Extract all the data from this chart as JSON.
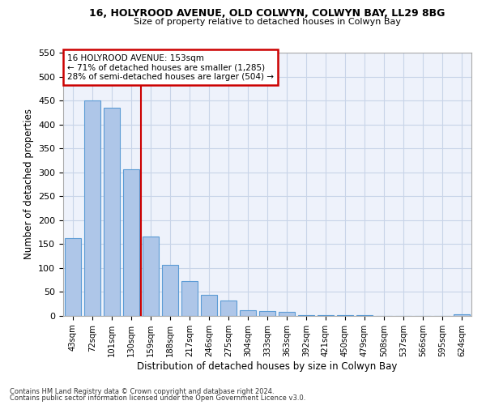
{
  "title1": "16, HOLYROOD AVENUE, OLD COLWYN, COLWYN BAY, LL29 8BG",
  "title2": "Size of property relative to detached houses in Colwyn Bay",
  "xlabel": "Distribution of detached houses by size in Colwyn Bay",
  "ylabel": "Number of detached properties",
  "categories": [
    "43sqm",
    "72sqm",
    "101sqm",
    "130sqm",
    "159sqm",
    "188sqm",
    "217sqm",
    "246sqm",
    "275sqm",
    "304sqm",
    "333sqm",
    "363sqm",
    "392sqm",
    "421sqm",
    "450sqm",
    "479sqm",
    "508sqm",
    "537sqm",
    "566sqm",
    "595sqm",
    "624sqm"
  ],
  "values": [
    163,
    450,
    435,
    307,
    166,
    106,
    73,
    44,
    33,
    12,
    10,
    8,
    2,
    1,
    1,
    1,
    0,
    0,
    0,
    0,
    4
  ],
  "bar_color": "#aec6e8",
  "bar_edge_color": "#5b9bd5",
  "vline_index": 3.5,
  "vline_color": "#cc0000",
  "annotation_line1": "16 HOLYROOD AVENUE: 153sqm",
  "annotation_line2": "← 71% of detached houses are smaller (1,285)",
  "annotation_line3": "28% of semi-detached houses are larger (504) →",
  "annotation_border_color": "#cc0000",
  "ylim": [
    0,
    550
  ],
  "yticks": [
    0,
    50,
    100,
    150,
    200,
    250,
    300,
    350,
    400,
    450,
    500,
    550
  ],
  "footnote1": "Contains HM Land Registry data © Crown copyright and database right 2024.",
  "footnote2": "Contains public sector information licensed under the Open Government Licence v3.0.",
  "bg_color": "#eef2fb",
  "grid_color": "#c8d4e8"
}
